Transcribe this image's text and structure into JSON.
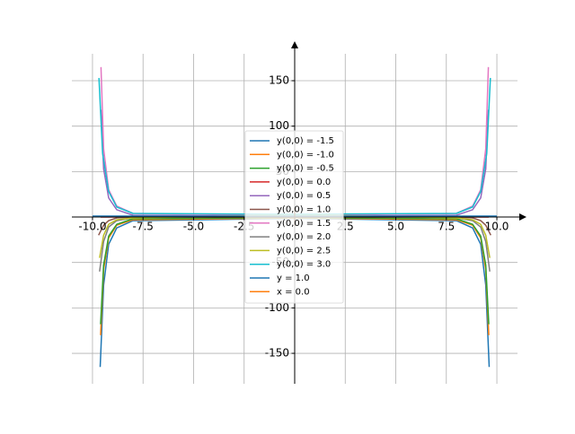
{
  "chart_data": {
    "type": "line",
    "grid": true,
    "legend": "center",
    "xlim": [
      -11.02,
      11.02
    ],
    "ylim": [
      -183.5,
      179.6
    ],
    "xticks": [
      {
        "value": -10,
        "label": "-10.0"
      },
      {
        "value": -7.5,
        "label": "-7.5"
      },
      {
        "value": -5,
        "label": "-5.0"
      },
      {
        "value": -2.5,
        "label": "-2.5"
      },
      {
        "value": 2.5,
        "label": "2.5"
      },
      {
        "value": 5,
        "label": "5.0"
      },
      {
        "value": 7.5,
        "label": "7.5"
      },
      {
        "value": 10,
        "label": "10.0"
      }
    ],
    "yticks": [
      -150,
      -100,
      -50,
      50,
      100,
      150
    ],
    "series": [
      {
        "name": "y(0,0) = -1.5",
        "color": "#1f77b4",
        "x": [
          -9.62,
          -9.45,
          -9.2,
          -8.8,
          -8,
          0,
          8,
          8.8,
          9.2,
          9.45,
          9.62
        ],
        "values": [
          -165,
          -75,
          -30,
          -12,
          -4,
          -1.5,
          -4,
          -12,
          -30,
          -75,
          -165
        ]
      },
      {
        "name": "y(0,0) = -1.0",
        "color": "#ff7f0e",
        "x": [
          -9.6,
          -9.45,
          -9.2,
          -8.8,
          -8,
          0,
          8,
          8.8,
          9.2,
          9.45,
          9.6
        ],
        "values": [
          -130,
          -58,
          -23,
          -9,
          -3,
          -1,
          -3,
          -9,
          -23,
          -58,
          -130
        ]
      },
      {
        "name": "y(0,0) = -0.5",
        "color": "#2ca02c",
        "x": [
          -9.6,
          -9.45,
          -9.2,
          -8.8,
          -8,
          0,
          8,
          8.8,
          9.2,
          9.45,
          9.6
        ],
        "values": [
          -118,
          -53,
          -21,
          -8,
          -2,
          -0.5,
          -2,
          -8,
          -21,
          -53,
          -118
        ]
      },
      {
        "name": "y(0,0) = 0.0",
        "color": "#d62728",
        "x": [
          -9.6,
          0,
          9.6
        ],
        "values": [
          0,
          0,
          0
        ]
      },
      {
        "name": "y(0,0) = 0.5",
        "color": "#9467bd",
        "x": [
          -9.58,
          -9.45,
          -9.2,
          -8.8,
          -8,
          0,
          8,
          8.8,
          9.2,
          9.45,
          9.58
        ],
        "values": [
          118,
          53,
          21,
          8,
          2,
          0.5,
          2,
          8,
          21,
          53,
          118
        ]
      },
      {
        "name": "y(0,0) = 1.0",
        "color": "#8c564b",
        "x": [
          -9.7,
          -9.45,
          -9.2,
          -8.8,
          -8,
          0,
          8,
          8.8,
          9.2,
          9.45,
          9.7
        ],
        "values": [
          -20,
          -9,
          -4,
          -1,
          0,
          1,
          0,
          -1,
          -4,
          -9,
          -20
        ]
      },
      {
        "name": "y(0,0) = 1.5",
        "color": "#e377c2",
        "x": [
          -9.58,
          -9.45,
          -9.2,
          -8.8,
          -8,
          0,
          8,
          8.8,
          9.2,
          9.45,
          9.58
        ],
        "values": [
          165,
          75,
          30,
          12,
          4,
          1.5,
          4,
          12,
          30,
          75,
          165
        ]
      },
      {
        "name": "y(0,0) = 2.0",
        "color": "#7f7f7f",
        "x": [
          -9.65,
          -9.45,
          -9.2,
          -8.8,
          -8,
          0,
          8,
          8.8,
          9.2,
          9.45,
          9.65
        ],
        "values": [
          -60,
          -27,
          -11,
          -4,
          -1,
          2,
          -1,
          -4,
          -11,
          -27,
          -60
        ]
      },
      {
        "name": "y(0,0) = 2.5",
        "color": "#bcbd22",
        "x": [
          -9.65,
          -9.45,
          -9.2,
          -8.8,
          -8,
          0,
          8,
          8.8,
          9.2,
          9.45,
          9.65
        ],
        "values": [
          -45,
          -20,
          -8,
          -3,
          -1,
          2.5,
          -1,
          -3,
          -8,
          -20,
          -45
        ]
      },
      {
        "name": "y(0,0) = 3.0",
        "color": "#17becf",
        "x": [
          -9.68,
          -9.5,
          -9.2,
          -8.8,
          -8,
          0,
          8,
          8.8,
          9.2,
          9.5,
          9.68
        ],
        "values": [
          153,
          70,
          28,
          11,
          4,
          3,
          4,
          11,
          28,
          70,
          153
        ]
      },
      {
        "name": "y = 1.0",
        "color": "#1f77b4",
        "x": [
          -10,
          10
        ],
        "values": [
          1,
          1
        ]
      },
      {
        "name": "x = 0.0",
        "color": "#ff7f0e",
        "x": [
          0,
          0
        ],
        "values": [
          -10,
          10
        ]
      }
    ]
  }
}
